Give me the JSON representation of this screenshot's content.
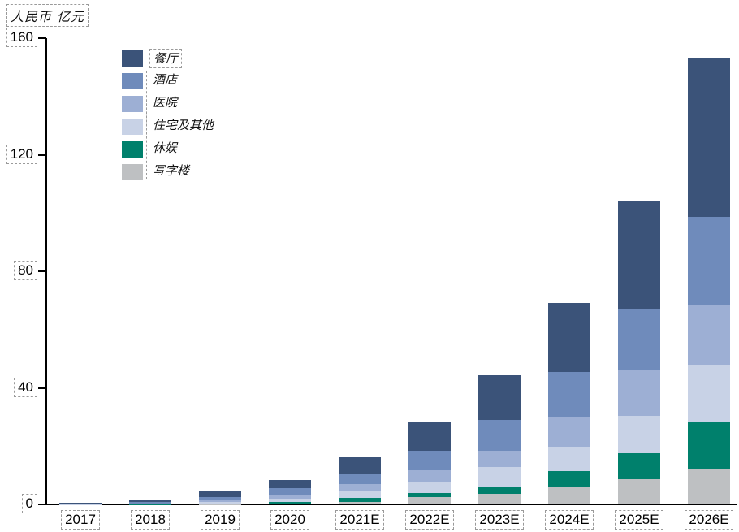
{
  "title": "人民币 亿元",
  "chart_data": {
    "type": "bar",
    "stacked": true,
    "title": "人民币 亿元",
    "ylabel": "人民币 亿元",
    "xlabel": "",
    "ylim": [
      0,
      160
    ],
    "yticks": [
      0,
      40,
      80,
      120,
      160
    ],
    "grid": false,
    "legend_position": "top-left-inset",
    "categories": [
      "2017",
      "2018",
      "2019",
      "2020",
      "2021E",
      "2022E",
      "2023E",
      "2024E",
      "2025E",
      "2026E"
    ],
    "series": [
      {
        "name": "餐厅",
        "color": "#3b5379",
        "values": [
          0.3,
          0.9,
          2.0,
          2.8,
          5.6,
          9.7,
          15.3,
          23.7,
          36.8,
          54.4
        ]
      },
      {
        "name": "酒店",
        "color": "#6f8bbb",
        "values": [
          0.1,
          0.4,
          1.0,
          2.2,
          3.6,
          6.7,
          10.6,
          15.3,
          20.9,
          30.1
        ]
      },
      {
        "name": "医院",
        "color": "#9dafd4",
        "values": [
          0.05,
          0.2,
          0.7,
          1.4,
          2.5,
          4.2,
          5.6,
          10.3,
          15.8,
          20.9
        ]
      },
      {
        "name": "住宅及其他",
        "color": "#c8d2e6",
        "values": [
          0.05,
          0.1,
          0.5,
          1.1,
          2.3,
          3.6,
          6.7,
          8.4,
          12.9,
          19.5
        ]
      },
      {
        "name": "休娱",
        "color": "#00806c",
        "values": [
          0.02,
          0.05,
          0.2,
          0.6,
          1.4,
          1.4,
          2.5,
          5.3,
          8.9,
          16.1
        ]
      },
      {
        "name": "写字楼",
        "color": "#bec0c2",
        "values": [
          0.02,
          0.05,
          0.1,
          0.3,
          0.8,
          2.5,
          3.6,
          6.1,
          8.6,
          12.0
        ]
      }
    ],
    "stack_order_bottom_to_top": [
      "写字楼",
      "休娱",
      "住宅及其他",
      "医院",
      "酒店",
      "餐厅"
    ]
  },
  "colors": {
    "axis": "#000000",
    "annotation_dash": "#9a9a9a",
    "background": "#ffffff"
  }
}
